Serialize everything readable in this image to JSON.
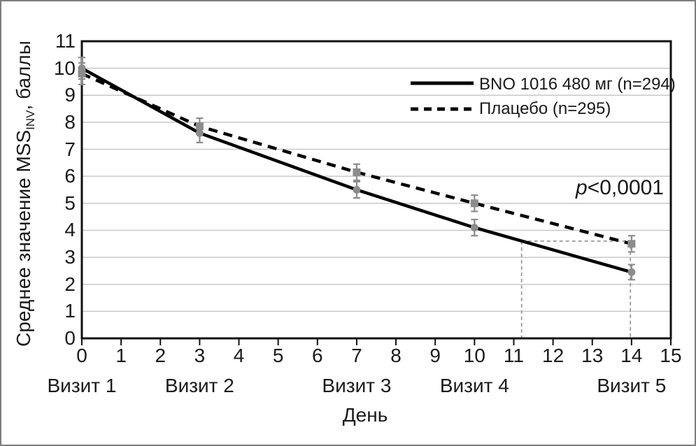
{
  "figure": {
    "border_color": "#7d7d7d",
    "background": "#ffffff"
  },
  "chart_data": {
    "type": "line",
    "title": "",
    "xlabel": "День",
    "ylabel": "Среднее значение MSS INV, баллы",
    "ylabel_parts": {
      "main": "Среднее значение MSS",
      "subscript": "INV",
      "tail": ", баллы"
    },
    "x": [
      0,
      3,
      7,
      10,
      14
    ],
    "xlim": [
      0,
      15
    ],
    "ylim": [
      0,
      11
    ],
    "x_ticks": [
      0,
      1,
      2,
      3,
      4,
      5,
      6,
      7,
      8,
      9,
      10,
      11,
      12,
      13,
      14,
      15
    ],
    "y_ticks": [
      0,
      1,
      2,
      3,
      4,
      5,
      6,
      7,
      8,
      9,
      10,
      11
    ],
    "grid": "horizontal",
    "legend_position": "top-right",
    "series": [
      {
        "name": "BNO 1016 480 мг (n=294)",
        "values": [
          10.0,
          7.6,
          5.5,
          4.1,
          2.45
        ],
        "errors": [
          0.4,
          0.35,
          0.3,
          0.3,
          0.28
        ],
        "style": "solid",
        "marker": "circle"
      },
      {
        "name": "Плацебо (n=295)",
        "values": [
          9.8,
          7.85,
          6.15,
          5.0,
          3.5
        ],
        "errors": [
          0.4,
          0.3,
          0.3,
          0.3,
          0.3
        ],
        "style": "dashed",
        "marker": "square"
      }
    ],
    "visits": [
      {
        "label": "Визит 1",
        "day": 0
      },
      {
        "label": "Визит 2",
        "day": 3
      },
      {
        "label": "Визит 3",
        "day": 7
      },
      {
        "label": "Визит 4",
        "day": 10
      },
      {
        "label": "Визит 5",
        "day": 14
      }
    ],
    "annotation": {
      "prefix": "p",
      "value": "<0,0001"
    },
    "reference_lines": [
      {
        "x1": 11.2,
        "y1": 3.6,
        "x2": 13.9,
        "y2": 3.6
      },
      {
        "x1": 11.2,
        "y1": 3.6,
        "x2": 11.2,
        "y2": 0
      },
      {
        "x1": 13.97,
        "y1": 3.45,
        "x2": 13.97,
        "y2": 0
      }
    ],
    "colors": {
      "line": "#000000",
      "marker": "#8c8c8c",
      "error_bar": "#8c8c8c",
      "grid": "#c8c8c8",
      "axis": "#111111",
      "reference": "#999999",
      "text": "#1a1a1a"
    }
  }
}
